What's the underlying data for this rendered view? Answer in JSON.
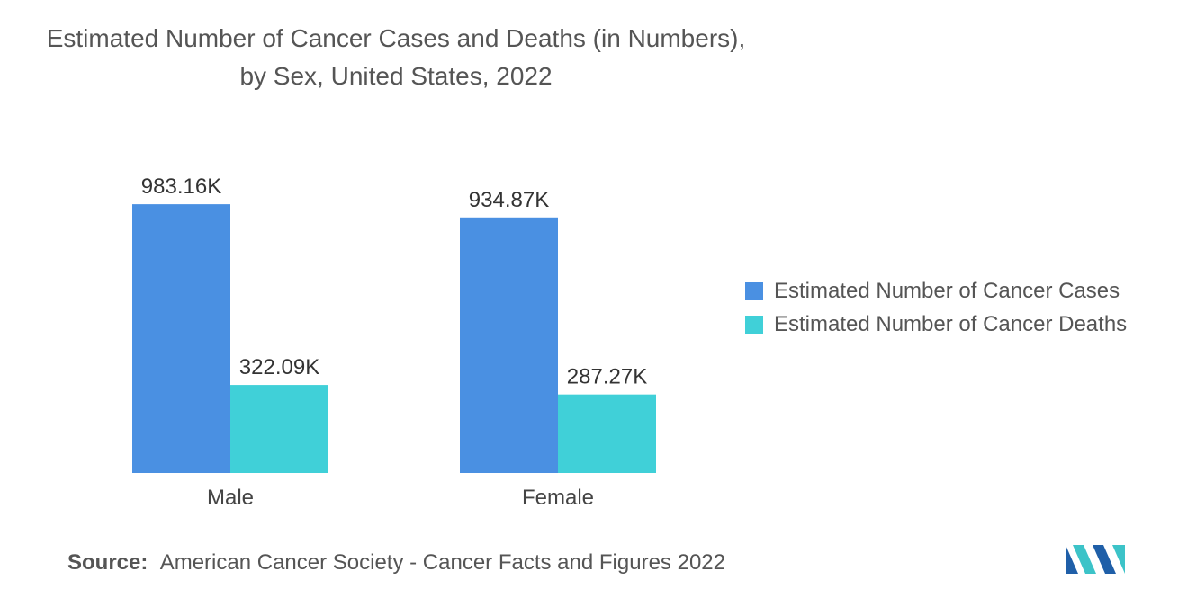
{
  "title": "Estimated Number of Cancer Cases and Deaths (in Numbers), by Sex, United States, 2022",
  "source": {
    "label": "Source:",
    "text": "American Cancer Society - Cancer Facts and Figures 2022"
  },
  "colors": {
    "cases": "#4a90e2",
    "deaths": "#40d0d8",
    "logo_dark": "#1f5fa8",
    "logo_teal": "#3cc3c8"
  },
  "chart_data": {
    "type": "bar",
    "categories": [
      "Male",
      "Female"
    ],
    "series": [
      {
        "name": "Estimated Number of Cancer Cases",
        "values": [
          983160,
          934870
        ],
        "labels": [
          "983.16K",
          "934.87K"
        ],
        "color": "#4a90e2"
      },
      {
        "name": "Estimated Number of Cancer Deaths",
        "values": [
          322090,
          287270
        ],
        "labels": [
          "322.09K",
          "287.27K"
        ],
        "color": "#40d0d8"
      }
    ],
    "ylim": [
      0,
      1000000
    ],
    "grid": false,
    "legend": "right"
  }
}
